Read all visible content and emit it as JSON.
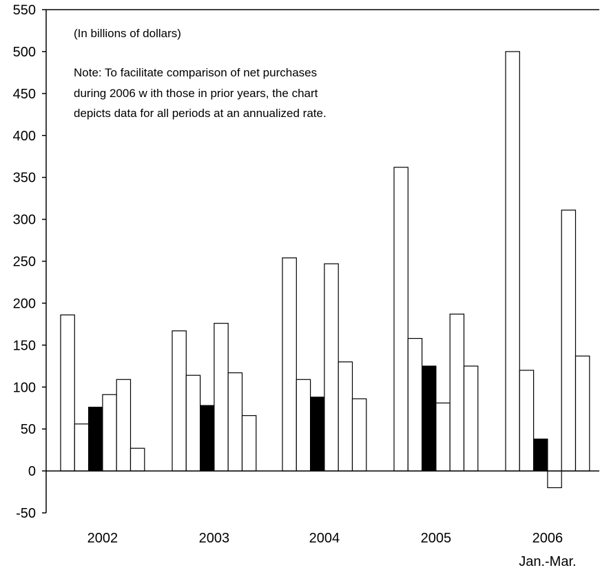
{
  "chart_data": {
    "type": "bar",
    "unit_note": "(In billions of dollars)",
    "note_lines": [
      "Note: To facilitate comparison of net purchases",
      "during 2006 w ith those in prior years, the chart",
      "depicts data for all periods at an annualized rate."
    ],
    "categories": [
      "2002",
      "2003",
      "2004",
      "2005",
      "2006"
    ],
    "category_sublabels": [
      "",
      "",
      "",
      "",
      "Jan.-Mar."
    ],
    "series_colors": [
      "#ffffff",
      "#ffffff",
      "#000000",
      "#ffffff",
      "#ffffff",
      "#ffffff"
    ],
    "series": [
      {
        "values": [
          186,
          167,
          254,
          362,
          500
        ]
      },
      {
        "values": [
          56,
          114,
          109,
          158,
          120
        ]
      },
      {
        "values": [
          76,
          78,
          88,
          125,
          38
        ]
      },
      {
        "values": [
          91,
          176,
          247,
          81,
          -20
        ]
      },
      {
        "values": [
          109,
          117,
          130,
          187,
          311
        ]
      },
      {
        "values": [
          27,
          66,
          86,
          125,
          137
        ]
      }
    ],
    "ylim": [
      -50,
      550
    ],
    "yticks": [
      -50,
      0,
      50,
      100,
      150,
      200,
      250,
      300,
      350,
      400,
      450,
      500,
      550
    ],
    "xlabel": "",
    "ylabel": "",
    "grid": false,
    "legend": "none"
  }
}
